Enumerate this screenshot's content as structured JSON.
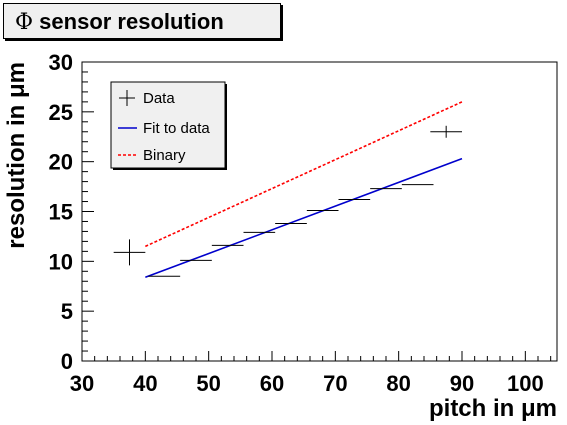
{
  "title": {
    "symbol": "Φ",
    "text": "sensor resolution"
  },
  "chart_data": {
    "type": "scatter",
    "xlabel": "pitch in μm",
    "ylabel": "resolution in μm",
    "xlim": [
      30,
      105
    ],
    "ylim": [
      0,
      30
    ],
    "x_ticks": [
      30,
      40,
      50,
      60,
      70,
      80,
      90,
      100
    ],
    "y_ticks": [
      0,
      5,
      10,
      15,
      20,
      25,
      30
    ],
    "grid": false,
    "legend_position": "top-left",
    "series": [
      {
        "name": "Data",
        "kind": "points_with_error_bars",
        "color": "#000000",
        "points": [
          {
            "x": 37.5,
            "y": 10.9,
            "xerr": 2.5,
            "yerr": 1.3
          },
          {
            "x": 43,
            "y": 8.5,
            "xerr": 2.5,
            "yerr": 0
          },
          {
            "x": 48,
            "y": 10.1,
            "xerr": 2.5,
            "yerr": 0
          },
          {
            "x": 53,
            "y": 11.6,
            "xerr": 2.5,
            "yerr": 0
          },
          {
            "x": 58,
            "y": 12.9,
            "xerr": 2.5,
            "yerr": 0
          },
          {
            "x": 63,
            "y": 13.8,
            "xerr": 2.5,
            "yerr": 0
          },
          {
            "x": 68,
            "y": 15.1,
            "xerr": 2.5,
            "yerr": 0
          },
          {
            "x": 73,
            "y": 16.2,
            "xerr": 2.5,
            "yerr": 0
          },
          {
            "x": 78,
            "y": 17.3,
            "xerr": 2.5,
            "yerr": 0
          },
          {
            "x": 83,
            "y": 17.7,
            "xerr": 2.5,
            "yerr": 0
          },
          {
            "x": 87.5,
            "y": 23.0,
            "xerr": 2.5,
            "yerr": 0.6
          }
        ]
      },
      {
        "name": "Fit to data",
        "kind": "line",
        "color": "#0000cc",
        "dash": "solid",
        "x": [
          40,
          90
        ],
        "y": [
          8.4,
          20.3
        ]
      },
      {
        "name": "Binary",
        "kind": "line",
        "color": "#ff0000",
        "dash": "dotted",
        "x": [
          40,
          90
        ],
        "y": [
          11.5,
          26.0
        ]
      }
    ]
  }
}
